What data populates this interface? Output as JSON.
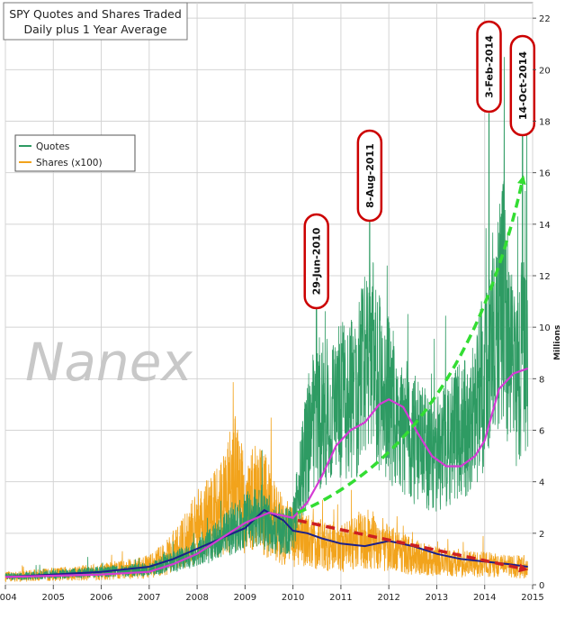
{
  "title": {
    "line1": "SPY Quotes and Shares Traded",
    "line2": "Daily plus 1 Year Average"
  },
  "watermark": "Nanex",
  "legend": {
    "items": [
      {
        "label": "Quotes",
        "color": "#2e9b63"
      },
      {
        "label": "Shares (x100)",
        "color": "#f2a31b"
      }
    ]
  },
  "colors": {
    "quotes": "#2e9b63",
    "shares": "#f2a31b",
    "quotes_avg": "#d43ad4",
    "shares_avg": "#1b1f8a",
    "green_trend": "#33dd33",
    "red_trend": "#cc2020",
    "callout_border": "#cc0000",
    "grid": "#d4d4d4"
  },
  "chart_data": {
    "type": "line",
    "title": "SPY Quotes and Shares Traded Daily plus 1 Year Average",
    "xlabel": "",
    "ylabel": "Millions",
    "xlim": [
      2004,
      2015
    ],
    "ylim": [
      0,
      22.6
    ],
    "x_ticks": [
      "2004",
      "2005",
      "2006",
      "2007",
      "2008",
      "2009",
      "2010",
      "2011",
      "2012",
      "2013",
      "2014",
      "2015"
    ],
    "y_ticks": [
      0,
      2,
      4,
      6,
      8,
      10,
      12,
      14,
      16,
      18,
      20,
      22
    ],
    "grid": true,
    "legend_position": "left",
    "series": [
      {
        "name": "Quotes",
        "x": [
          2004.0,
          2005.0,
          2006.0,
          2007.0,
          2008.0,
          2008.5,
          2009.0,
          2009.3,
          2009.5,
          2009.8,
          2010.0,
          2010.2,
          2010.45,
          2010.6,
          2011.0,
          2011.3,
          2011.6,
          2011.9,
          2012.2,
          2012.6,
          2013.0,
          2013.4,
          2013.8,
          2014.09,
          2014.4,
          2014.6,
          2014.79,
          2014.9
        ],
        "values": [
          0.3,
          0.4,
          0.5,
          0.6,
          1.2,
          1.8,
          2.5,
          2.6,
          2.3,
          2.0,
          2.2,
          4.5,
          7.0,
          6.5,
          7.0,
          7.3,
          9.0,
          7.5,
          6.5,
          5.5,
          5.0,
          5.8,
          6.5,
          9.0,
          11.0,
          8.0,
          9.0,
          8.0
        ]
      },
      {
        "name": "Shares (x100)",
        "x": [
          2004.0,
          2005.0,
          2006.0,
          2007.0,
          2007.5,
          2008.0,
          2008.5,
          2008.8,
          2009.0,
          2009.3,
          2009.6,
          2010.0,
          2010.5,
          2011.0,
          2011.6,
          2012.0,
          2012.5,
          2013.0,
          2013.5,
          2014.0,
          2014.5,
          2014.9
        ],
        "values": [
          0.3,
          0.4,
          0.5,
          0.7,
          1.2,
          2.2,
          3.0,
          4.0,
          3.0,
          3.5,
          2.5,
          1.8,
          1.6,
          1.4,
          1.8,
          1.4,
          1.1,
          0.9,
          0.8,
          0.8,
          0.7,
          0.7
        ]
      },
      {
        "name": "Quotes 1 Year Average",
        "x": [
          2004.0,
          2005.0,
          2006.0,
          2007.0,
          2007.5,
          2008.0,
          2008.5,
          2009.0,
          2009.5,
          2010.0,
          2010.3,
          2010.6,
          2010.9,
          2011.2,
          2011.5,
          2011.8,
          2012.0,
          2012.3,
          2012.6,
          2012.9,
          2013.2,
          2013.5,
          2013.8,
          2014.0,
          2014.3,
          2014.6,
          2014.9
        ],
        "values": [
          0.3,
          0.35,
          0.4,
          0.5,
          0.8,
          1.2,
          1.8,
          2.4,
          2.8,
          2.6,
          3.2,
          4.2,
          5.4,
          6.0,
          6.3,
          7.0,
          7.2,
          6.9,
          5.9,
          5.0,
          4.6,
          4.6,
          5.0,
          5.6,
          7.6,
          8.2,
          8.4
        ]
      },
      {
        "name": "Shares 1 Year Average",
        "x": [
          2004.0,
          2005.0,
          2006.0,
          2007.0,
          2007.5,
          2008.0,
          2008.5,
          2009.0,
          2009.4,
          2009.8,
          2010.0,
          2010.3,
          2010.6,
          2011.0,
          2011.5,
          2012.0,
          2012.5,
          2013.0,
          2013.5,
          2014.0,
          2014.5,
          2014.9
        ],
        "values": [
          0.3,
          0.4,
          0.5,
          0.7,
          1.0,
          1.4,
          1.8,
          2.2,
          2.9,
          2.5,
          2.1,
          2.0,
          1.8,
          1.6,
          1.5,
          1.7,
          1.5,
          1.2,
          1.0,
          0.9,
          0.8,
          0.7
        ]
      }
    ],
    "annotations": [
      {
        "label": "29-Jun-2010",
        "x": 2010.49,
        "y": 11.2
      },
      {
        "label": "8-Aug-2011",
        "x": 2011.6,
        "y": 14.6
      },
      {
        "label": "3-Feb-2014",
        "x": 2014.09,
        "y": 18.3
      },
      {
        "label": "14-Oct-2014",
        "x": 2014.79,
        "y": 18.0
      }
    ],
    "trend_arrows": [
      {
        "name": "quotes-trend",
        "from": [
          2010.1,
          2.8
        ],
        "to": [
          2014.8,
          15.8
        ]
      },
      {
        "name": "shares-trend",
        "from": [
          2010.1,
          2.5
        ],
        "to": [
          2014.85,
          0.6
        ]
      }
    ]
  }
}
